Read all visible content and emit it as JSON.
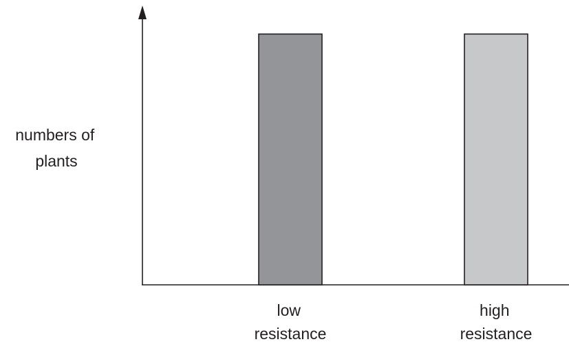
{
  "chart_data": {
    "type": "bar",
    "title": "",
    "xlabel": "",
    "ylabel": [
      "numbers of",
      "plants"
    ],
    "categories": [
      [
        "low",
        "resistance"
      ],
      [
        "high",
        "resistance"
      ]
    ],
    "values": [
      1,
      1
    ],
    "ylim": [
      0,
      1.1
    ],
    "grid": false,
    "legend": "none",
    "colors": {
      "low": "#939598",
      "high": "#c7c8ca",
      "axis": "#231f20",
      "text": "#231f20"
    }
  }
}
